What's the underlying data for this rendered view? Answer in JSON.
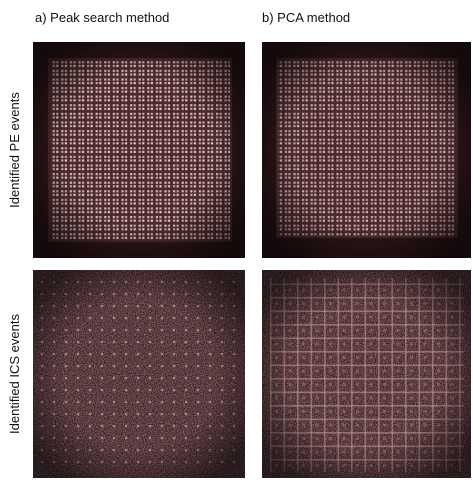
{
  "columns": [
    "a) Peak search method",
    "b) PCA method"
  ],
  "rows": [
    "Identified PE events",
    "Identified ICS events"
  ]
}
